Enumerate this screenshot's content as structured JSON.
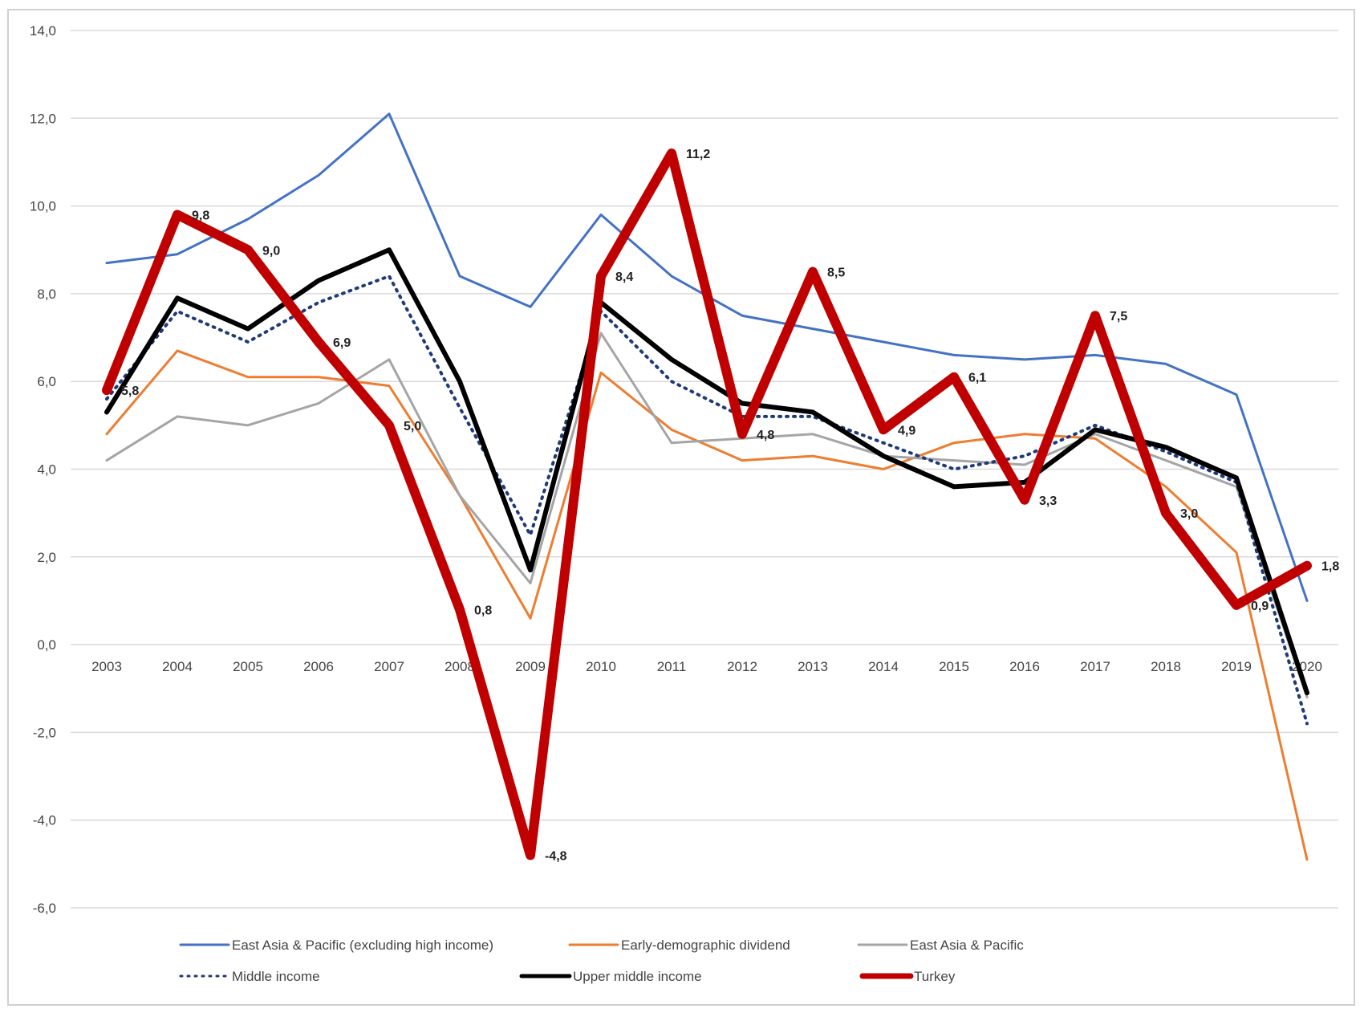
{
  "chart_data": {
    "type": "line",
    "title": "",
    "xlabel": "",
    "ylabel": "",
    "ylim": [
      -6,
      14
    ],
    "ytick_labels": [
      "14,0",
      "12,0",
      "10,0",
      "8,0",
      "6,0",
      "4,0",
      "2,0",
      "0,0",
      "-2,0",
      "-4,0",
      "-6,0"
    ],
    "yticks": [
      14,
      12,
      10,
      8,
      6,
      4,
      2,
      0,
      -2,
      -4,
      -6
    ],
    "categories": [
      "2003",
      "2004",
      "2005",
      "2006",
      "2007",
      "2008",
      "2009",
      "2010",
      "2011",
      "2012",
      "2013",
      "2014",
      "2015",
      "2016",
      "2017",
      "2018",
      "2019",
      "2020"
    ],
    "grid": true,
    "legend_position": "bottom",
    "series": [
      {
        "name": "East Asia & Pacific (excluding high income)",
        "color": "#4472C4",
        "style": "solid",
        "values": [
          8.7,
          8.9,
          9.7,
          10.7,
          12.1,
          8.4,
          7.7,
          9.8,
          8.4,
          7.5,
          7.2,
          6.9,
          6.6,
          6.5,
          6.6,
          6.4,
          5.7,
          1.0
        ]
      },
      {
        "name": "Early-demographic dividend",
        "color": "#ED7D31",
        "style": "solid",
        "values": [
          4.8,
          6.7,
          6.1,
          6.1,
          5.9,
          3.4,
          0.6,
          6.2,
          4.9,
          4.2,
          4.3,
          4.0,
          4.6,
          4.8,
          4.7,
          3.6,
          2.1,
          -4.9
        ]
      },
      {
        "name": "East Asia & Pacific",
        "color": "#A5A5A5",
        "style": "solid",
        "values": [
          4.2,
          5.2,
          5.0,
          5.5,
          6.5,
          3.4,
          1.4,
          7.1,
          4.6,
          4.7,
          4.8,
          4.3,
          4.2,
          4.1,
          4.8,
          4.2,
          3.6,
          -1.2
        ]
      },
      {
        "name": "Middle income",
        "color": "#1F3A7A",
        "style": "dotted",
        "values": [
          5.6,
          7.6,
          6.9,
          7.8,
          8.4,
          5.4,
          2.5,
          7.6,
          6.0,
          5.2,
          5.2,
          4.6,
          4.0,
          4.3,
          5.0,
          4.4,
          3.7,
          -1.8
        ]
      },
      {
        "name": "Upper middle income",
        "color": "#000000",
        "style": "solid",
        "values": [
          5.3,
          7.9,
          7.2,
          8.3,
          9.0,
          6.0,
          1.7,
          7.8,
          6.5,
          5.5,
          5.3,
          4.3,
          3.6,
          3.7,
          4.9,
          4.5,
          3.8,
          -1.1
        ]
      },
      {
        "name": "Turkey",
        "color": "#C00000",
        "style": "solid",
        "values": [
          5.8,
          9.8,
          9.0,
          6.9,
          5.0,
          0.8,
          -4.8,
          8.4,
          11.2,
          4.8,
          8.5,
          4.9,
          6.1,
          3.3,
          7.5,
          3.0,
          0.9,
          1.8
        ]
      }
    ],
    "data_labels": [
      "5,8",
      "9,8",
      "9,0",
      "6,9",
      "5,0",
      "0,8",
      "-4,8",
      "8,4",
      "11,2",
      "4,8",
      "8,5",
      "4,9",
      "6,1",
      "3,3",
      "7,5",
      "3,0",
      "0,9",
      "1,8"
    ]
  }
}
